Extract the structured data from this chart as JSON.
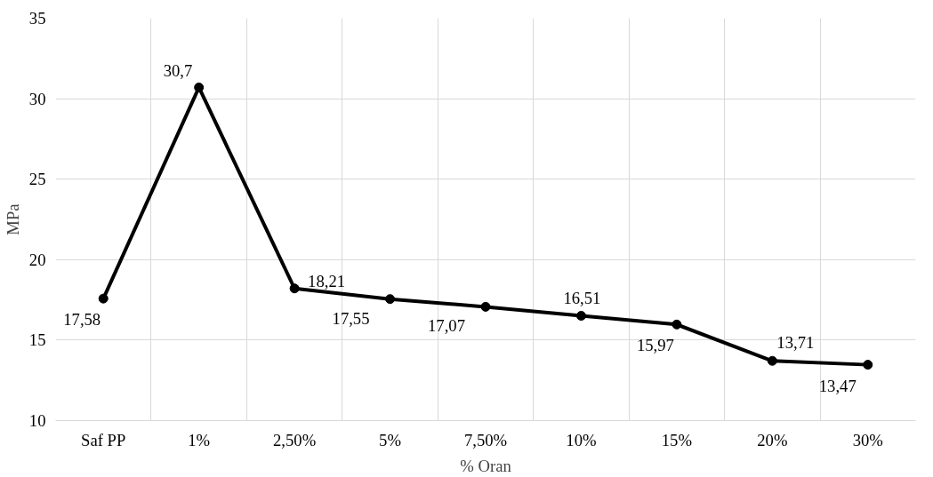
{
  "chart_data": {
    "type": "line",
    "xlabel": "% Oran",
    "ylabel": "MPa",
    "categories": [
      "Saf PP",
      "1%",
      "2,50%",
      "5%",
      "7,50%",
      "10%",
      "15%",
      "20%",
      "30%"
    ],
    "values": [
      17.58,
      30.7,
      18.21,
      17.55,
      17.07,
      16.51,
      15.97,
      13.71,
      13.47
    ],
    "value_labels": [
      "17,58",
      "30,7",
      "18,21",
      "17,55",
      "17,07",
      "16,51",
      "15,97",
      "13,71",
      "13,47"
    ],
    "color": "#000000",
    "marker": "circle",
    "line_style": "solid",
    "grid": true,
    "ylim": [
      10,
      35
    ],
    "yticks": [
      10,
      15,
      20,
      25,
      30,
      35
    ]
  }
}
